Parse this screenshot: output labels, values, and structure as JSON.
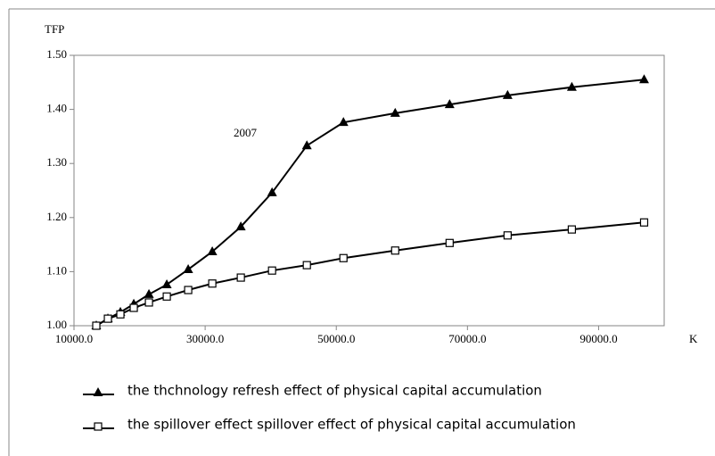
{
  "chart_data": {
    "type": "line",
    "y_label": "TFP",
    "x_label": "K",
    "annotation": "2007",
    "x": [
      13400,
      15170,
      17075,
      19116,
      21429,
      24150,
      27415,
      31088,
      35442,
      40204,
      45510,
      51088,
      58980,
      67279,
      76122,
      85918,
      96939
    ],
    "series": [
      {
        "name": "the thchnology refresh effect of physical capital accumulation",
        "color": "#000000",
        "marker": "triangle",
        "values": [
          1.0,
          1.013,
          1.025,
          1.04,
          1.058,
          1.076,
          1.104,
          1.137,
          1.183,
          1.246,
          1.333,
          1.376,
          1.393,
          1.409,
          1.426,
          1.441,
          1.455
        ]
      },
      {
        "name": "the spillover effect  spillover effect of physical capital accumulation",
        "color": "#000000",
        "marker": "square",
        "values": [
          1.0,
          1.013,
          1.021,
          1.033,
          1.043,
          1.054,
          1.066,
          1.078,
          1.089,
          1.102,
          1.112,
          1.125,
          1.139,
          1.153,
          1.167,
          1.178,
          1.191
        ]
      }
    ],
    "xlim": [
      10000,
      100000
    ],
    "xticks": [
      {
        "value": 10000,
        "label": "10000.0"
      },
      {
        "value": 30000,
        "label": "30000.0"
      },
      {
        "value": 50000,
        "label": "50000.0"
      },
      {
        "value": 70000,
        "label": "70000.0"
      },
      {
        "value": 90000,
        "label": "90000.0"
      }
    ],
    "ylim": [
      1.0,
      1.5
    ],
    "yticks": [
      {
        "value": 1.0,
        "label": "1.00"
      },
      {
        "value": 1.1,
        "label": "1.10"
      },
      {
        "value": 1.2,
        "label": "1.20"
      },
      {
        "value": 1.3,
        "label": "1.30"
      },
      {
        "value": 1.4,
        "label": "1.40"
      },
      {
        "value": 1.5,
        "label": "1.50"
      }
    ],
    "grid": false
  }
}
